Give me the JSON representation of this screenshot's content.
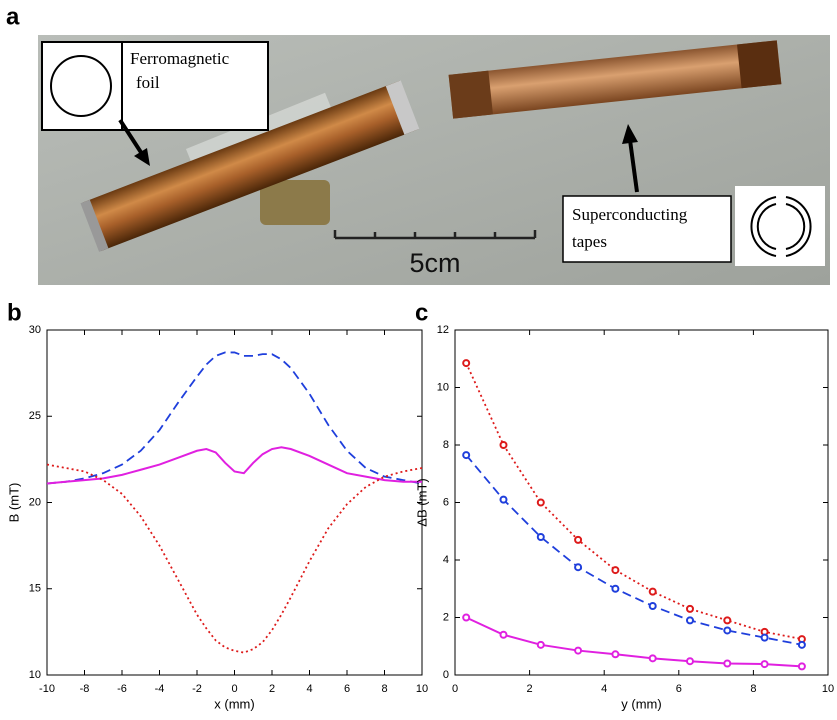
{
  "photo": {
    "label": "a",
    "foil_label": [
      "Ferromagnetic",
      "foil"
    ],
    "tape_label": [
      "Superconducting",
      "tapes"
    ],
    "scale_label": "5cm"
  },
  "chart_data": [
    {
      "type": "line",
      "label": "b",
      "xlabel": "x (mm)",
      "ylabel": "B (mT)",
      "x": [
        -10,
        -9,
        -8,
        -7,
        -6,
        -5,
        -4,
        -3,
        -2,
        -1.5,
        -1,
        -0.5,
        0,
        0.5,
        1,
        1.5,
        2,
        2.5,
        3,
        4,
        5,
        6,
        7,
        8,
        9,
        10
      ],
      "xlim": [
        -10,
        10
      ],
      "xticks": [
        -10,
        -8,
        -6,
        -4,
        -2,
        0,
        2,
        4,
        6,
        8,
        10
      ],
      "ylim": [
        10,
        30
      ],
      "yticks": [
        10,
        15,
        20,
        25,
        30
      ],
      "markers": false,
      "series": [
        {
          "color": "#1f3fdc",
          "style": "dashed",
          "values": [
            21.1,
            21.2,
            21.4,
            21.7,
            22.2,
            23.0,
            24.2,
            25.8,
            27.3,
            28.0,
            28.5,
            28.7,
            28.7,
            28.5,
            28.5,
            28.6,
            28.6,
            28.3,
            27.8,
            26.3,
            24.5,
            23.0,
            22.0,
            21.5,
            21.3,
            21.1
          ]
        },
        {
          "color": "#e020e0",
          "style": "solid",
          "values": [
            21.1,
            21.2,
            21.3,
            21.4,
            21.6,
            21.9,
            22.2,
            22.6,
            23.0,
            23.1,
            22.9,
            22.3,
            21.8,
            21.7,
            22.3,
            22.8,
            23.1,
            23.2,
            23.1,
            22.7,
            22.2,
            21.7,
            21.5,
            21.3,
            21.2,
            21.2
          ]
        },
        {
          "color": "#dd1a1a",
          "style": "dotted",
          "values": [
            22.2,
            22.0,
            21.8,
            21.3,
            20.5,
            19.2,
            17.5,
            15.5,
            13.5,
            12.7,
            12.0,
            11.6,
            11.4,
            11.3,
            11.5,
            11.9,
            12.6,
            13.5,
            14.5,
            16.6,
            18.5,
            19.9,
            20.9,
            21.5,
            21.8,
            22.0
          ]
        }
      ]
    },
    {
      "type": "line",
      "label": "c",
      "xlabel": "y (mm)",
      "ylabel": "ΔB (mT)",
      "x": [
        0.3,
        1.3,
        2.3,
        3.3,
        4.3,
        5.3,
        6.3,
        7.3,
        8.3,
        9.3
      ],
      "xlim": [
        0,
        10
      ],
      "xticks": [
        0,
        2,
        4,
        6,
        8,
        10
      ],
      "ylim": [
        0,
        12
      ],
      "yticks": [
        0,
        2,
        4,
        6,
        8,
        10,
        12
      ],
      "markers": true,
      "series": [
        {
          "color": "#dd1a1a",
          "style": "dotted",
          "values": [
            10.85,
            8.0,
            6.0,
            4.7,
            3.65,
            2.9,
            2.3,
            1.9,
            1.5,
            1.25
          ]
        },
        {
          "color": "#1f3fdc",
          "style": "dashed",
          "values": [
            7.65,
            6.1,
            4.8,
            3.75,
            3.0,
            2.4,
            1.9,
            1.55,
            1.3,
            1.05
          ]
        },
        {
          "color": "#e020e0",
          "style": "solid",
          "values": [
            2.0,
            1.4,
            1.05,
            0.85,
            0.72,
            0.58,
            0.48,
            0.4,
            0.38,
            0.3
          ]
        }
      ]
    }
  ]
}
